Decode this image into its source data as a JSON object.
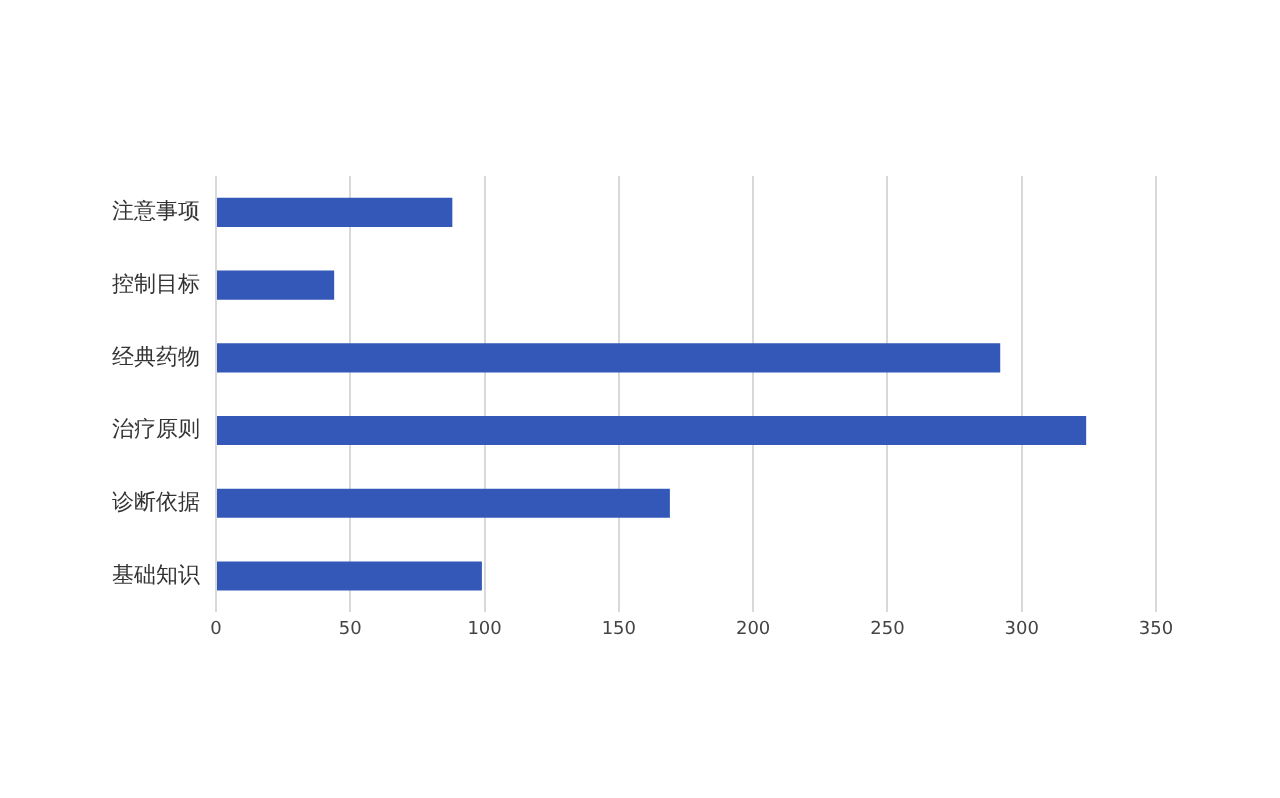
{
  "chart_data": {
    "type": "bar",
    "orientation": "horizontal",
    "categories": [
      "注意事项",
      "控制目标",
      "经典药物",
      "治疗原则",
      "诊断依据",
      "基础知识"
    ],
    "values": [
      88,
      44,
      292,
      324,
      169,
      99
    ],
    "color": "#3358b8",
    "xlim": [
      0,
      350
    ],
    "xticks": [
      0,
      50,
      100,
      150,
      200,
      250,
      300,
      350
    ],
    "grid": "x"
  }
}
